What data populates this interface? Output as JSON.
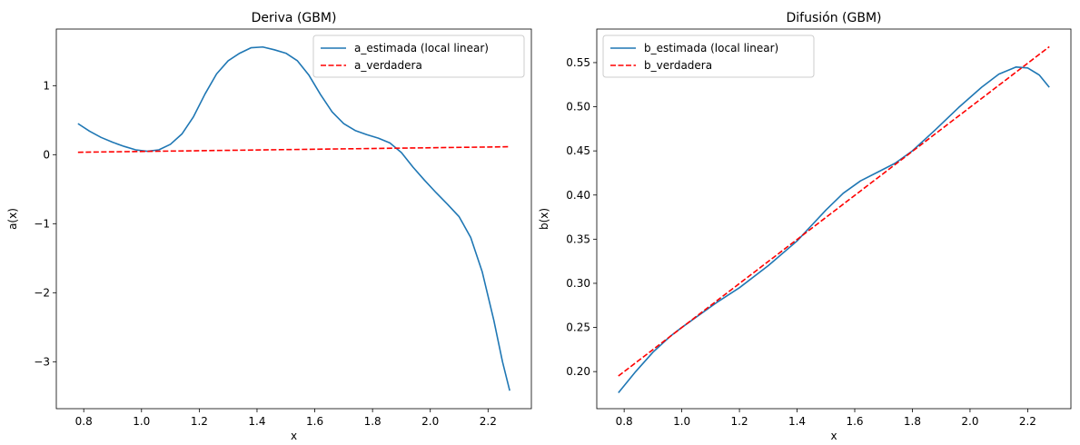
{
  "chart_data": [
    {
      "type": "line",
      "title": "Deriva (GBM)",
      "xlabel": "x",
      "ylabel": "a(x)",
      "xlim": [
        0.705,
        2.35
      ],
      "ylim": [
        -3.68,
        1.82
      ],
      "xticks": [
        0.8,
        1.0,
        1.2,
        1.4,
        1.6,
        1.8,
        2.0,
        2.2
      ],
      "xtick_labels": [
        "0.8",
        "1.0",
        "1.2",
        "1.4",
        "1.6",
        "1.8",
        "2.0",
        "2.2"
      ],
      "yticks": [
        -3,
        -2,
        -1,
        0,
        1
      ],
      "ytick_labels": [
        "−3",
        "−2",
        "−1",
        "0",
        "1"
      ],
      "grid": false,
      "legend_position": "upper-right",
      "series": [
        {
          "name": "a_estimada (local linear)",
          "style": "solid",
          "color": "#1f77b4",
          "x": [
            0.78,
            0.82,
            0.86,
            0.9,
            0.94,
            0.98,
            1.02,
            1.06,
            1.1,
            1.14,
            1.18,
            1.22,
            1.26,
            1.3,
            1.34,
            1.38,
            1.42,
            1.46,
            1.5,
            1.54,
            1.58,
            1.62,
            1.66,
            1.7,
            1.74,
            1.78,
            1.82,
            1.86,
            1.9,
            1.94,
            1.98,
            2.02,
            2.06,
            2.1,
            2.14,
            2.18,
            2.22,
            2.25,
            2.275
          ],
          "y": [
            0.45,
            0.34,
            0.25,
            0.18,
            0.12,
            0.07,
            0.05,
            0.07,
            0.15,
            0.3,
            0.55,
            0.88,
            1.17,
            1.36,
            1.47,
            1.55,
            1.56,
            1.52,
            1.47,
            1.36,
            1.15,
            0.87,
            0.62,
            0.45,
            0.35,
            0.29,
            0.24,
            0.17,
            0.03,
            -0.18,
            -0.37,
            -0.55,
            -0.72,
            -0.9,
            -1.2,
            -1.7,
            -2.4,
            -3.0,
            -3.42
          ]
        },
        {
          "name": "a_verdadera",
          "style": "dashed",
          "color": "#ff0000",
          "x": [
            0.78,
            2.275
          ],
          "y": [
            0.035,
            0.115
          ]
        }
      ]
    },
    {
      "type": "line",
      "title": "Difusión (GBM)",
      "xlabel": "x",
      "ylabel": "b(x)",
      "xlim": [
        0.705,
        2.35
      ],
      "ylim": [
        0.158,
        0.588
      ],
      "xticks": [
        0.8,
        1.0,
        1.2,
        1.4,
        1.6,
        1.8,
        2.0,
        2.2
      ],
      "xtick_labels": [
        "0.8",
        "1.0",
        "1.2",
        "1.4",
        "1.6",
        "1.8",
        "2.0",
        "2.2"
      ],
      "yticks": [
        0.2,
        0.25,
        0.3,
        0.35,
        0.4,
        0.45,
        0.5,
        0.55
      ],
      "ytick_labels": [
        "0.20",
        "0.25",
        "0.30",
        "0.35",
        "0.40",
        "0.45",
        "0.50",
        "0.55"
      ],
      "grid": false,
      "legend_position": "upper-left",
      "series": [
        {
          "name": "b_estimada (local linear)",
          "style": "solid",
          "color": "#1f77b4",
          "x": [
            0.78,
            0.84,
            0.9,
            0.96,
            1.0,
            1.06,
            1.12,
            1.2,
            1.3,
            1.4,
            1.5,
            1.56,
            1.62,
            1.68,
            1.74,
            1.8,
            1.88,
            1.96,
            2.04,
            2.1,
            2.16,
            2.2,
            2.24,
            2.275
          ],
          "y": [
            0.176,
            0.2,
            0.222,
            0.24,
            0.25,
            0.264,
            0.278,
            0.295,
            0.32,
            0.348,
            0.383,
            0.402,
            0.416,
            0.426,
            0.436,
            0.45,
            0.474,
            0.499,
            0.522,
            0.537,
            0.545,
            0.544,
            0.536,
            0.522
          ]
        },
        {
          "name": "b_verdadera",
          "style": "dashed",
          "color": "#ff0000",
          "x": [
            0.78,
            2.275
          ],
          "y": [
            0.195,
            0.568
          ]
        }
      ]
    }
  ]
}
